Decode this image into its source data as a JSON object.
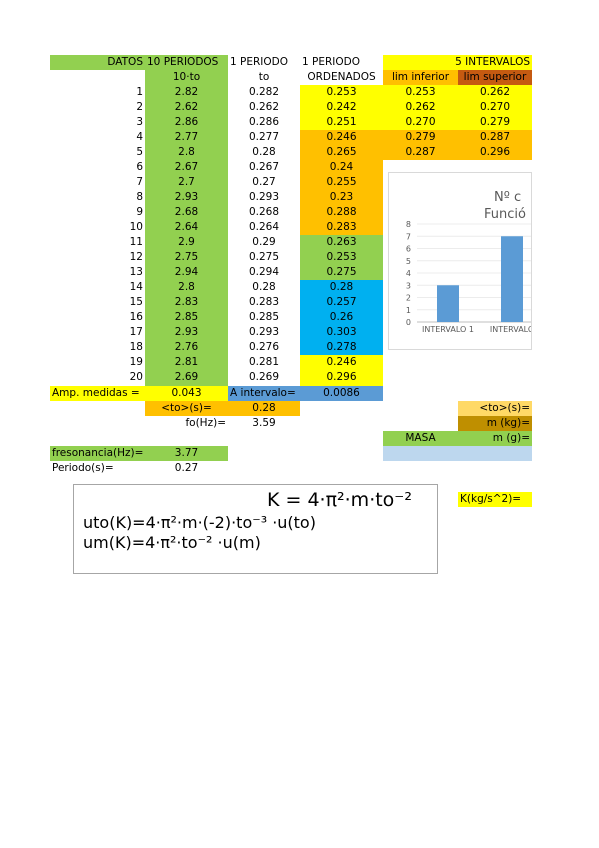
{
  "header": {
    "a": "DATOS",
    "b": "10 PERIODOS",
    "c": "1 PERIODO",
    "d": "1 PERIODO",
    "intervals": "5 INTERVALOS"
  },
  "subheader": {
    "b": "10·to",
    "c": "to",
    "d": "ORDENADOS",
    "e": "lim inferior",
    "f": "lim superior"
  },
  "table": {
    "rows": [
      [
        "1",
        "2.82",
        "0.282",
        "0.253",
        "0.253",
        "0.262"
      ],
      [
        "2",
        "2.62",
        "0.262",
        "0.242",
        "0.262",
        "0.270"
      ],
      [
        "3",
        "2.86",
        "0.286",
        "0.251",
        "0.270",
        "0.279"
      ],
      [
        "4",
        "2.77",
        "0.277",
        "0.246",
        "0.279",
        "0.287"
      ],
      [
        "5",
        "2.8",
        "0.28",
        "0.265",
        "0.287",
        "0.296"
      ],
      [
        "6",
        "2.67",
        "0.267",
        "0.24"
      ],
      [
        "7",
        "2.7",
        "0.27",
        "0.255"
      ],
      [
        "8",
        "2.93",
        "0.293",
        "0.23"
      ],
      [
        "9",
        "2.68",
        "0.268",
        "0.288"
      ],
      [
        "10",
        "2.64",
        "0.264",
        "0.283"
      ],
      [
        "11",
        "2.9",
        "0.29",
        "0.263"
      ],
      [
        "12",
        "2.75",
        "0.275",
        "0.253"
      ],
      [
        "13",
        "2.94",
        "0.294",
        "0.275"
      ],
      [
        "14",
        "2.8",
        "0.28",
        "0.28"
      ],
      [
        "15",
        "2.83",
        "0.283",
        "0.257"
      ],
      [
        "16",
        "2.85",
        "0.285",
        "0.26"
      ],
      [
        "17",
        "2.93",
        "0.293",
        "0.303"
      ],
      [
        "18",
        "2.76",
        "0.276",
        "0.278"
      ],
      [
        "19",
        "2.81",
        "0.281",
        "0.246"
      ],
      [
        "20",
        "2.69",
        "0.269",
        "0.296"
      ]
    ]
  },
  "summary": {
    "amp_label": "Amp. medidas =",
    "amp_value": "0.043",
    "interval_label": "A intervalo=",
    "interval_value": "0.0086",
    "to_label": "<to>(s)=",
    "to_value": "0.28",
    "fo_label": "fo(Hz)=",
    "fo_value": "3.59",
    "res_label": "fresonancia(Hz)=",
    "res_value": "3.77",
    "period_label": "Periodo(s)=",
    "period_value": "0.27"
  },
  "right_panel": {
    "to_label": "<to>(s)=",
    "mkg_label": "m (kg)=",
    "masa": "MASA",
    "mg_label": "m (g)=",
    "k_label": "K(kg/s^2)="
  },
  "formulas": [
    "K = 4·π²·m·to⁻²",
    "uto(K)=4·π²·m·(-2)·to⁻³ ·u(to)",
    "um(K)=4·π²·to⁻² ·u(m)"
  ],
  "chart": {
    "title_line1": "Nº c",
    "title_line2": "Funció",
    "categories": [
      "INTERVALO 1",
      "INTERVALO"
    ],
    "values": [
      3,
      7
    ],
    "ylim": [
      0,
      8
    ],
    "yticks": [
      0,
      1,
      2,
      3,
      4,
      5,
      6,
      7,
      8
    ],
    "color": "#5b9bd5"
  }
}
